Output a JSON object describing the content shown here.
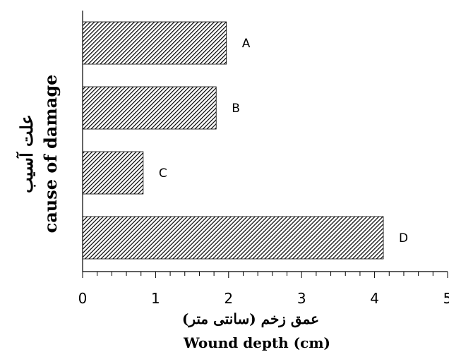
{
  "chart_data": {
    "type": "bar",
    "orientation": "horizontal",
    "categories": [
      "A",
      "B",
      "C",
      "D"
    ],
    "values": [
      1.97,
      1.83,
      0.83,
      4.12
    ],
    "xlim": [
      0,
      5
    ],
    "x_ticks": [
      "0",
      "1",
      "2",
      "3",
      "4",
      "5"
    ],
    "minor_ticks_per_unit": 5,
    "xlabel_fa": "عمق زخم (سانتی متر)",
    "xlabel": "Wound depth (cm)",
    "ylabel_fa": "علت آسیب",
    "ylabel": "cause of damage",
    "bar_fill": "diagonal-hatch",
    "bar_color": "#000000",
    "grid": false,
    "legend": "none"
  }
}
